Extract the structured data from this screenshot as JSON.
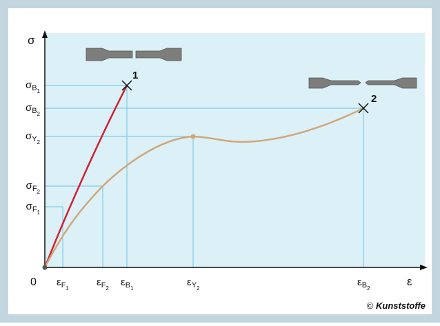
{
  "axes": {
    "y_label": "σ",
    "x_label": "ε",
    "origin": "0"
  },
  "y_labels": [
    {
      "symbol": "σ",
      "index": "B",
      "subindex": "1"
    },
    {
      "symbol": "σ",
      "index": "B",
      "subindex": "2"
    },
    {
      "symbol": "σ",
      "index": "Y",
      "subindex": "2"
    },
    {
      "symbol": "σ",
      "index": "F",
      "subindex": "2"
    },
    {
      "symbol": "σ",
      "index": "F",
      "subindex": "1"
    }
  ],
  "x_labels": [
    {
      "symbol": "ε",
      "index": "F",
      "subindex": "1"
    },
    {
      "symbol": "ε",
      "index": "F",
      "subindex": "2"
    },
    {
      "symbol": "ε",
      "index": "B",
      "subindex": "1"
    },
    {
      "symbol": "ε",
      "index": "Y",
      "subindex": "2"
    },
    {
      "symbol": "ε",
      "index": "B",
      "subindex": "2"
    }
  ],
  "curves": [
    {
      "label": "1"
    },
    {
      "label": "2"
    }
  ],
  "credit": {
    "symbol": "©",
    "text": "Kunststoffe"
  }
}
